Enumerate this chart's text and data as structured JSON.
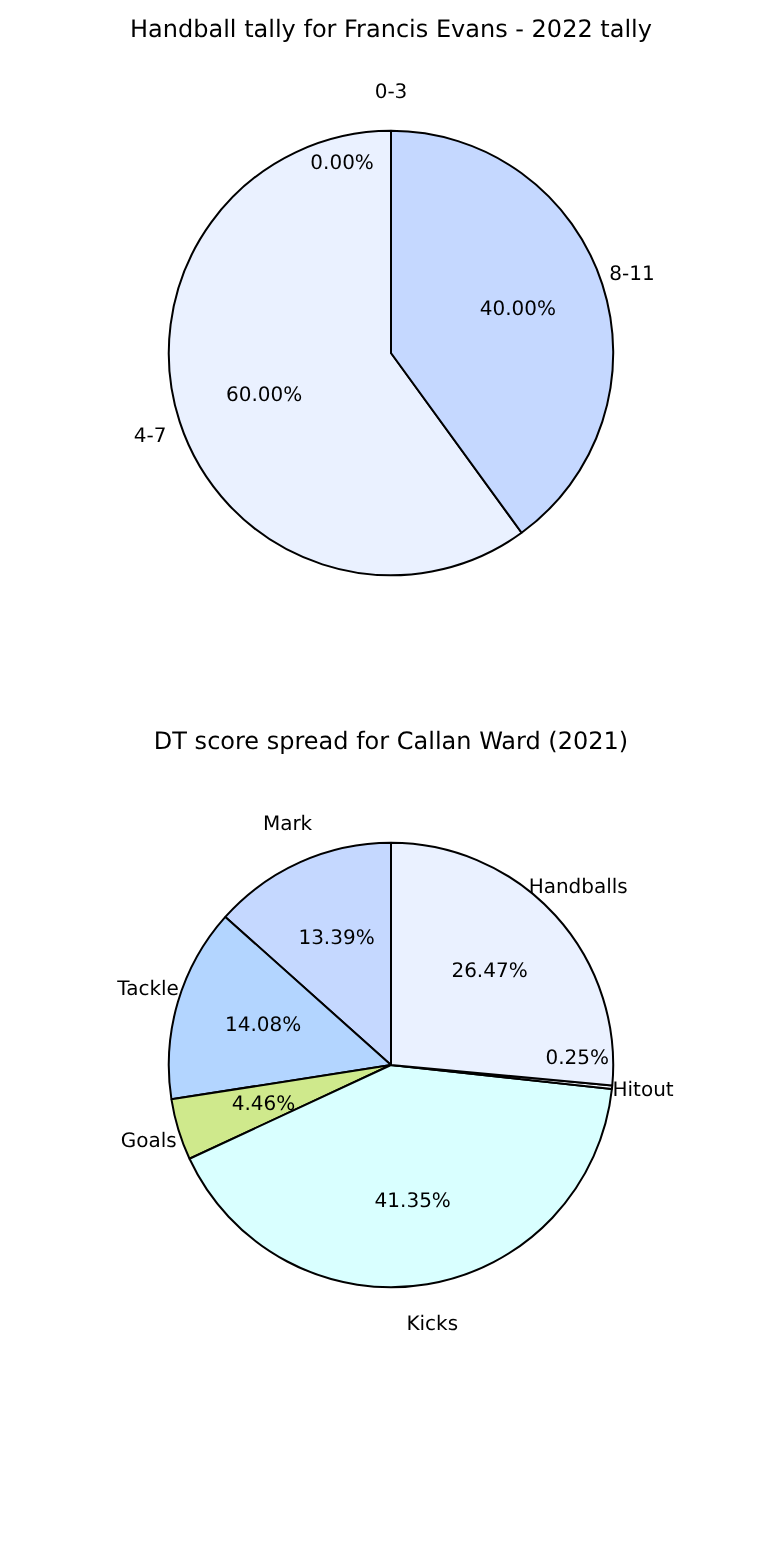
{
  "chart_data": [
    {
      "type": "pie",
      "title": "Handball tally for Francis Evans - 2022 tally",
      "categories": [
        "0-3",
        "4-7",
        "8-11"
      ],
      "values": [
        0,
        60,
        40
      ],
      "colors": [
        "#ffffff",
        "#eaf1ff",
        "#c5d8ff"
      ],
      "value_labels": [
        "0.00%",
        "60.00%",
        "40.00%"
      ]
    },
    {
      "type": "pie",
      "title": "DT score spread for Callan Ward (2021)",
      "categories": [
        "Mark",
        "Tackle",
        "Goals",
        "Kicks",
        "Hitout",
        "Handballs"
      ],
      "values": [
        13.39,
        14.08,
        4.46,
        41.35,
        0.25,
        26.47
      ],
      "colors": [
        "#c5d8ff",
        "#b3d5ff",
        "#cfe98c",
        "#d9ffff",
        "#f4f8ff",
        "#eaf1ff"
      ],
      "value_labels": [
        "13.39%",
        "14.08%",
        "4.46%",
        "41.35%",
        "0.25%",
        "26.47%"
      ]
    }
  ]
}
